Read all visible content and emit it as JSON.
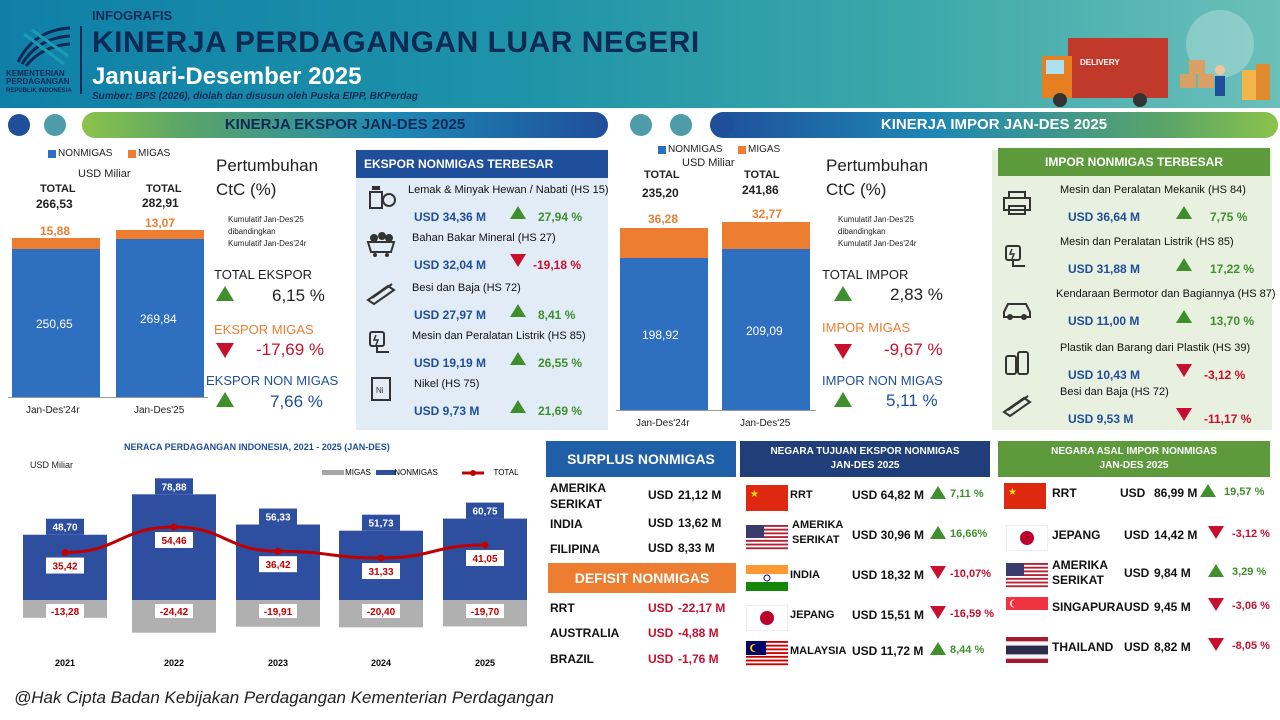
{
  "header": {
    "small": "INFOGRAFIS",
    "title": "KINERJA PERDAGANGAN LUAR NEGERI",
    "period": "Januari-Desember 2025",
    "source": "Sumber: BPS (2026), diolah dan disusun oleh Puska EIPP, BKPerdag",
    "ministry": "KEMENTERIAN PERDAGANGAN",
    "ministry_sub": "REPUBLIK INDONESIA",
    "delivery": "DELIVERY"
  },
  "colors": {
    "nonmigas": "#2e6fc0",
    "migas": "#ed7d31",
    "navy": "#1f3e7a",
    "green": "#3f8f2d",
    "red": "#c8102e"
  },
  "export": {
    "section_title": "KINERJA EKSPOR JAN-DES 2025",
    "legend_nonmigas": "NONMIGAS",
    "legend_migas": "MIGAS",
    "unit": "USD Miliar",
    "total_label": "TOTAL",
    "bars": [
      {
        "period": "Jan-Des'24r",
        "total": "266,53",
        "nonmigas": "250,65",
        "migas": "15,88"
      },
      {
        "period": "Jan-Des'25",
        "total": "282,91",
        "nonmigas": "269,84",
        "migas": "13,07"
      }
    ],
    "growth_title": "Pertumbuhan",
    "growth_sub": "CtC (%)",
    "note1": "Kumulatif Jan-Des'25",
    "note2": "dibandingkan",
    "note3": "Kumulatif Jan-Des'24r",
    "total_label2": "TOTAL EKSPOR",
    "total_val": "6,15 %",
    "migas_label": "EKSPOR MIGAS",
    "migas_val": "-17,69 %",
    "nonmigas_label": "EKSPOR NON MIGAS",
    "nonmigas_val": "7,66 %"
  },
  "export_top": {
    "title": "EKSPOR NONMIGAS TERBESAR",
    "items": [
      {
        "name": "Lemak & Minyak Hewan / Nabati (HS 15)",
        "value": "USD  34,36 M",
        "growth": "27,94 %",
        "dir": "up",
        "icon": "oil-bottle-icon"
      },
      {
        "name": "Bahan Bakar Mineral (HS 27)",
        "value": "USD  32,04 M",
        "growth": "-19,18 %",
        "dir": "down",
        "icon": "coal-cart-icon"
      },
      {
        "name": "Besi dan Baja (HS 72)",
        "value": "USD  27,97 M",
        "growth": "8,41 %",
        "dir": "up",
        "icon": "steel-beam-icon"
      },
      {
        "name": "Mesin dan Peralatan Listrik (HS 85)",
        "value": "USD  19,19 M",
        "growth": "26,55 %",
        "dir": "up",
        "icon": "plug-icon"
      },
      {
        "name": "Nikel (HS 75)",
        "value": "USD   9,73 M",
        "growth": "21,69 %",
        "dir": "up",
        "icon": "nickel-icon"
      }
    ]
  },
  "import": {
    "section_title": "KINERJA IMPOR JAN-DES 2025",
    "legend_nonmigas": "NONMIGAS",
    "legend_migas": "MIGAS",
    "unit": "USD Miliar",
    "total_label": "TOTAL",
    "bars": [
      {
        "period": "Jan-Des'24r",
        "total": "235,20",
        "nonmigas": "198,92",
        "migas": "36,28"
      },
      {
        "period": "Jan-Des'25",
        "total": "241,86",
        "nonmigas": "209,09",
        "migas": "32,77"
      }
    ],
    "growth_title": "Pertumbuhan",
    "growth_sub": "CtC (%)",
    "note1": "Kumulatif Jan-Des'25",
    "note2": "dibandingkan",
    "note3": "Kumulatif Jan-Des'24r",
    "total_label2": "TOTAL IMPOR",
    "total_val": "2,83 %",
    "migas_label": "IMPOR MIGAS",
    "migas_val": "-9,67 %",
    "nonmigas_label": "IMPOR NON MIGAS",
    "nonmigas_val": "5,11  %"
  },
  "import_top": {
    "title": "IMPOR NONMIGAS TERBESAR",
    "items": [
      {
        "name": "Mesin dan Peralatan Mekanik (HS 84)",
        "value": "USD  36,64 M",
        "growth": "7,75 %",
        "dir": "up",
        "icon": "printer-icon"
      },
      {
        "name": "Mesin dan Peralatan Listrik (HS 85)",
        "value": "USD  31,88 M",
        "growth": "17,22 %",
        "dir": "up",
        "icon": "plug-icon"
      },
      {
        "name": "Kendaraan Bermotor dan Bagiannya (HS 87)",
        "value": "USD  11,00 M",
        "growth": "13,70 %",
        "dir": "up",
        "icon": "car-icon"
      },
      {
        "name": "Plastik dan Barang dari Plastik (HS 39)",
        "value": "USD  10,43 M",
        "growth": "-3,12 %",
        "dir": "down",
        "icon": "bottles-icon"
      },
      {
        "name": "Besi dan Baja (HS 72)",
        "value": "USD   9,53 M",
        "growth": "-11,17 %",
        "dir": "down",
        "icon": "steel-beam-icon"
      }
    ]
  },
  "chart_data": {
    "type": "bar",
    "title": "NERACA PERDAGANGAN INDONESIA, 2021 - 2025 (JAN-DES)",
    "ylabel": "USD Miliar",
    "legend": [
      "MIGAS",
      "NONMIGAS",
      "TOTAL"
    ],
    "categories": [
      "2021",
      "2022",
      "2023",
      "2024",
      "2025"
    ],
    "series": [
      {
        "name": "NONMIGAS",
        "values": [
          48.7,
          78.88,
          56.33,
          51.73,
          60.75
        ],
        "labels": [
          "48,70",
          "78,88",
          "56,33",
          "51,73",
          "60,75"
        ]
      },
      {
        "name": "MIGAS",
        "values": [
          -13.28,
          -24.42,
          -19.91,
          -20.4,
          -19.7
        ],
        "labels": [
          "-13,28",
          "-24,42",
          "-19,91",
          "-20,40",
          "-19,70"
        ]
      },
      {
        "name": "TOTAL",
        "values": [
          35.42,
          54.46,
          36.42,
          31.33,
          41.05
        ],
        "labels": [
          "35,42",
          "54,46",
          "36,42",
          "31,33",
          "41,05"
        ]
      }
    ],
    "ylim": [
      -30,
      85
    ]
  },
  "surplus": {
    "title": "SURPLUS NONMIGAS",
    "rows": [
      {
        "country": "AMERIKA SERIKAT",
        "cur": "USD",
        "val": "21,12 M"
      },
      {
        "country": "INDIA",
        "cur": "USD",
        "val": "13,62 M"
      },
      {
        "country": "FILIPINA",
        "cur": "USD",
        "val": "8,33 M"
      }
    ]
  },
  "deficit": {
    "title": "DEFISIT NONMIGAS",
    "rows": [
      {
        "country": "RRT",
        "cur": "USD",
        "val": "-22,17 M"
      },
      {
        "country": "AUSTRALIA",
        "cur": "USD",
        "val": "-4,88 M"
      },
      {
        "country": "BRAZIL",
        "cur": "USD",
        "val": "-1,76 M"
      }
    ]
  },
  "dest": {
    "title1": "NEGARA TUJUAN EKSPOR NONMIGAS",
    "title2": "JAN-DES 2025",
    "rows": [
      {
        "country": "RRT",
        "val": "USD  64,82 M",
        "growth": "7,11 %",
        "dir": "up",
        "flag": "china"
      },
      {
        "country": "AMERIKA SERIKAT",
        "val": "USD  30,96 M",
        "growth": "16,66%",
        "dir": "up",
        "flag": "usa"
      },
      {
        "country": "INDIA",
        "val": "USD  18,32 M",
        "growth": "-10,07%",
        "dir": "down",
        "flag": "india"
      },
      {
        "country": "JEPANG",
        "val": "USD  15,51 M",
        "growth": "-16,59 %",
        "dir": "down",
        "flag": "japan"
      },
      {
        "country": "MALAYSIA",
        "val": "USD  11,72 M",
        "growth": "8,44 %",
        "dir": "up",
        "flag": "malaysia"
      }
    ]
  },
  "origin": {
    "title1": "NEGARA ASAL IMPOR NONMIGAS",
    "title2": "JAN-DES 2025",
    "rows": [
      {
        "country": "RRT",
        "cur": "USD",
        "val": "86,99 M",
        "growth": "19,57 %",
        "dir": "up",
        "flag": "china"
      },
      {
        "country": "JEPANG",
        "cur": "USD",
        "val": "14,42 M",
        "growth": "-3,12 %",
        "dir": "down",
        "flag": "japan"
      },
      {
        "country": "AMERIKA SERIKAT",
        "cur": "USD",
        "val": "9,84 M",
        "growth": "3,29 %",
        "dir": "up",
        "flag": "usa"
      },
      {
        "country": "SINGAPURA",
        "cur": "USD",
        "val": "9,45 M",
        "growth": "-3,06 %",
        "dir": "down",
        "flag": "singapore"
      },
      {
        "country": "THAILAND",
        "cur": "USD",
        "val": "8,82 M",
        "growth": "-8,05 %",
        "dir": "down",
        "flag": "thailand"
      }
    ]
  },
  "footer": {
    "copyright": "@Hak Cipta Badan Kebijakan Perdagangan Kementerian Perdagangan"
  }
}
